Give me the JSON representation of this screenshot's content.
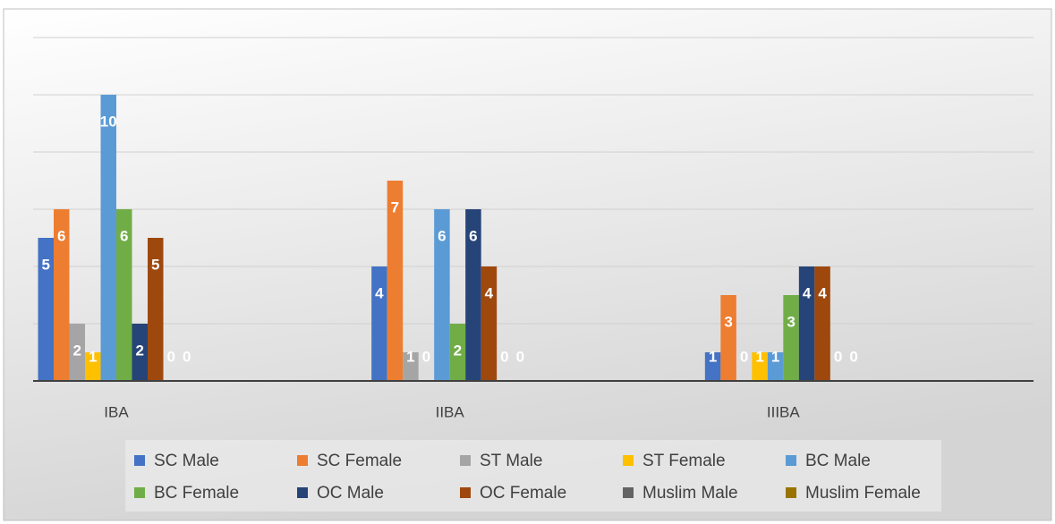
{
  "chart_data": {
    "type": "bar",
    "categories": [
      "IBA",
      "IIBA",
      "IIIBA"
    ],
    "series": [
      {
        "name": "SC Male",
        "color": "#4472c4",
        "values": [
          5,
          4,
          1
        ]
      },
      {
        "name": "SC Female",
        "color": "#ed7d31",
        "values": [
          6,
          7,
          3
        ]
      },
      {
        "name": "ST Male",
        "color": "#a5a5a5",
        "values": [
          2,
          1,
          0
        ]
      },
      {
        "name": "ST Female",
        "color": "#ffc000",
        "values": [
          1,
          0,
          1
        ]
      },
      {
        "name": "BC Male",
        "color": "#5b9bd5",
        "values": [
          10,
          6,
          1
        ]
      },
      {
        "name": "BC Female",
        "color": "#70ad47",
        "values": [
          6,
          2,
          3
        ]
      },
      {
        "name": "OC Male",
        "color": "#264478",
        "values": [
          2,
          6,
          4
        ]
      },
      {
        "name": "OC Female",
        "color": "#9e480e",
        "values": [
          5,
          4,
          4
        ]
      },
      {
        "name": "Muslim Male",
        "color": "#636363",
        "values": [
          0,
          0,
          0
        ]
      },
      {
        "name": "Muslim Female",
        "color": "#997300",
        "values": [
          0,
          0,
          0
        ]
      }
    ],
    "ylim": [
      0,
      12
    ],
    "yticks": [
      0,
      2,
      4,
      6,
      8,
      10,
      12
    ],
    "grid": true,
    "legend": "bottom"
  }
}
